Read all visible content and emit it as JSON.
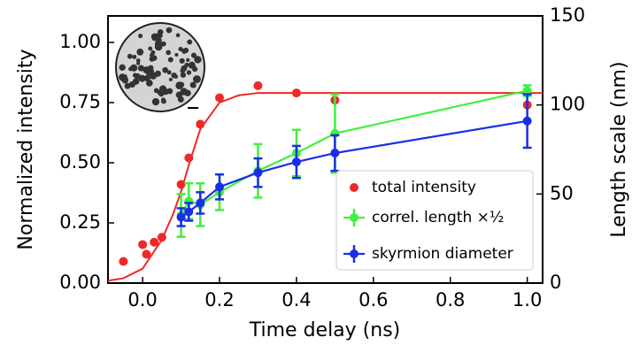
{
  "chart_data": {
    "type": "scatter",
    "x_label": "Time delay (ns)",
    "y_label": "Normalized intensity",
    "y2_label": "Length scale (nm)",
    "xlim": [
      -0.09,
      1.04
    ],
    "xticks": [
      {
        "value": 0,
        "label": "0.0"
      },
      {
        "value": 0.2,
        "label": "0.2"
      },
      {
        "value": 0.4,
        "label": "0.4"
      },
      {
        "value": 0.6,
        "label": "0.6"
      },
      {
        "value": 0.8,
        "label": "0.8"
      },
      {
        "value": 1,
        "label": "1.0"
      }
    ],
    "ylim": [
      0,
      1.11
    ],
    "yticks": [
      {
        "value": 0,
        "label": "0.00"
      },
      {
        "value": 0.25,
        "label": "0.25"
      },
      {
        "value": 0.5,
        "label": "0.50"
      },
      {
        "value": 0.75,
        "label": "0.75"
      },
      {
        "value": 1,
        "label": "1.00"
      }
    ],
    "y2lim": [
      0,
      150
    ],
    "y2ticks": [
      0,
      50,
      100,
      150
    ],
    "fit": {
      "color": "#f02828",
      "x": [
        -0.09,
        -0.05,
        0,
        0.05,
        0.08,
        0.1,
        0.12,
        0.15,
        0.2,
        0.25,
        0.3,
        1.04
      ],
      "values": [
        0.01,
        0.02,
        0.06,
        0.18,
        0.29,
        0.38,
        0.49,
        0.64,
        0.75,
        0.78,
        0.79,
        0.79
      ]
    },
    "series": [
      {
        "name": "total intensity",
        "color": "#f02828",
        "x": [
          -0.05,
          0.0,
          0.01,
          0.03,
          0.05,
          0.1,
          0.12,
          0.15,
          0.2,
          0.3,
          0.4,
          0.5,
          1.0
        ],
        "values": [
          0.09,
          0.16,
          0.12,
          0.17,
          0.19,
          0.41,
          0.52,
          0.66,
          0.77,
          0.82,
          0.79,
          0.76,
          0.74
        ]
      },
      {
        "name": "correl. length ×½",
        "color": "#3ff03f",
        "axis": "y2",
        "x": [
          0.1,
          0.12,
          0.15,
          0.2,
          0.3,
          0.4,
          0.5,
          1.0
        ],
        "values": [
          38,
          46,
          44,
          51,
          63,
          73,
          84,
          108
        ],
        "errors": [
          12,
          10,
          12,
          10,
          15,
          13,
          22,
          3
        ]
      },
      {
        "name": "skyrmion diameter",
        "color": "#1a2ee6",
        "axis": "y2",
        "x": [
          0.1,
          0.12,
          0.15,
          0.2,
          0.3,
          0.4,
          0.5,
          1.0
        ],
        "values": [
          37,
          40,
          45,
          54,
          62,
          68,
          73,
          91
        ],
        "errors": [
          5,
          5,
          6,
          7,
          8,
          9,
          10,
          15
        ]
      }
    ]
  }
}
